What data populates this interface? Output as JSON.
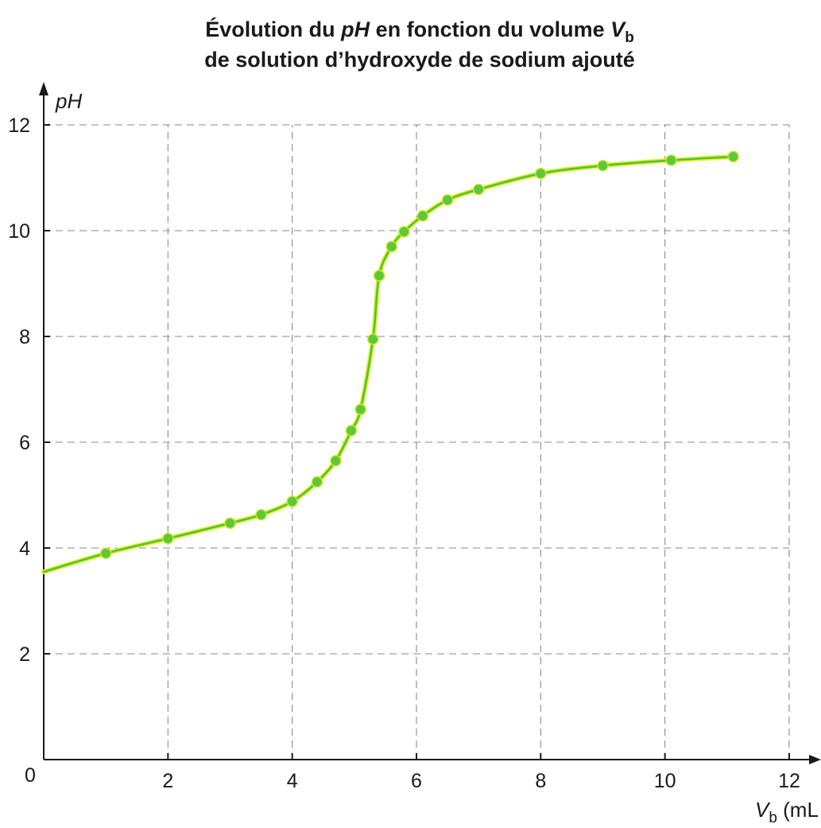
{
  "chart_data": {
    "type": "line",
    "title_line1_prefix": "Évolution du ",
    "title_line1_var": "pH",
    "title_line1_mid": " en fonction du volume ",
    "title_line1_sym": "V",
    "title_line1_sub": "b",
    "title_line2": "de solution d’hydroxyde de sodium ajouté",
    "ylabel": "pH",
    "xlabel_sym": "V",
    "xlabel_sub": "b",
    "xlabel_unit": " (mL",
    "origin_label": "0",
    "xlim": [
      0,
      12
    ],
    "ylim": [
      0,
      12
    ],
    "x_ticks": [
      "2",
      "4",
      "6",
      "8",
      "10",
      "12"
    ],
    "y_ticks": [
      "2",
      "4",
      "6",
      "8",
      "10",
      "12"
    ],
    "grid": true,
    "curve_start": {
      "x": 0,
      "y": 3.55
    },
    "series": [
      {
        "x": [
          1,
          2,
          3,
          3.5,
          4,
          4.4,
          4.7,
          4.95,
          5.1,
          5.3,
          5.4,
          5.6,
          5.8,
          6.1,
          6.5,
          7,
          8,
          9,
          10.1,
          11.1
        ],
        "y": [
          3.9,
          4.18,
          4.47,
          4.63,
          4.88,
          5.25,
          5.65,
          6.22,
          6.62,
          7.95,
          9.15,
          9.7,
          9.98,
          10.28,
          10.58,
          10.78,
          11.08,
          11.23,
          11.33,
          11.4
        ]
      }
    ],
    "colors": {
      "curve_outer": "#e8ef2a",
      "curve_inner": "#4cc43c",
      "marker": "#5cc83a",
      "marker_edge": "#cfe52a",
      "axis": "#1a1a1a",
      "grid": "#8a8a8a"
    }
  }
}
